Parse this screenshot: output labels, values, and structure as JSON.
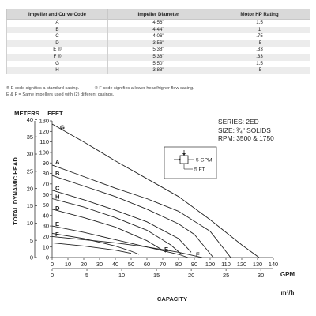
{
  "table": {
    "headers": [
      "Impeller and Curve Code",
      "Impeller Diameter",
      "Motor HP Rating"
    ],
    "rows": [
      [
        "A",
        "4.56\"",
        "1.5"
      ],
      [
        "B",
        "4.44\"",
        "1"
      ],
      [
        "C",
        "4.06\"",
        ".75"
      ],
      [
        "D",
        "3.56\"",
        ".5"
      ],
      [
        "E ®",
        "5.38\"",
        ".33"
      ],
      [
        "F ®",
        "5.38\"",
        ".33"
      ],
      [
        "G",
        "5.50\"",
        "1.5"
      ],
      [
        "H",
        "3.88\"",
        ".5"
      ]
    ]
  },
  "notes": {
    "e_code": "® E code signifies a standard casing.",
    "f_code": "® F code signifies a lower head/higher flow casing.",
    "ef_same": "E & F = Same impellers used with (2) different casings."
  },
  "series_info": {
    "line1": "SERIES: 2ED",
    "line2": "SIZE: ³⁄₄\" SOLIDS",
    "line3": "RPM: 3500 & 1750"
  },
  "scale_key": {
    "gpm": "5 GPM",
    "ft": "5 FT"
  },
  "chart_data": {
    "type": "line",
    "title": "",
    "ylabel": "TOTAL DYNAMIC HEAD",
    "y_units_left": "METERS",
    "y_units_right": "FEET",
    "xlabel": "CAPACITY",
    "x_units": "GPM",
    "x2_units": "m³/h",
    "xlim": [
      0,
      140
    ],
    "ylim": [
      0,
      130
    ],
    "x_ticks_gpm": [
      0,
      10,
      20,
      30,
      40,
      50,
      60,
      70,
      80,
      90,
      100,
      110,
      120,
      130,
      140
    ],
    "y_ticks_feet": [
      0,
      10,
      20,
      30,
      40,
      50,
      60,
      70,
      80,
      90,
      100,
      110,
      120,
      130
    ],
    "y_ticks_meters": [
      0,
      5,
      10,
      15,
      20,
      25,
      30,
      35,
      40
    ],
    "x_ticks_m3h": [
      0,
      5,
      10,
      15,
      20,
      25,
      30
    ],
    "grid": false,
    "series": [
      {
        "name": "G",
        "points": [
          [
            0,
            127
          ],
          [
            20,
            110
          ],
          [
            40,
            92
          ],
          [
            60,
            75
          ],
          [
            80,
            58
          ],
          [
            100,
            36
          ],
          [
            120,
            12
          ],
          [
            131,
            0
          ]
        ]
      },
      {
        "name": "A",
        "points": [
          [
            0,
            88
          ],
          [
            20,
            77
          ],
          [
            40,
            66
          ],
          [
            60,
            56
          ],
          [
            80,
            44
          ],
          [
            100,
            25
          ],
          [
            113,
            0
          ]
        ]
      },
      {
        "name": "B",
        "points": [
          [
            0,
            78
          ],
          [
            20,
            68
          ],
          [
            40,
            58
          ],
          [
            60,
            46
          ],
          [
            80,
            32
          ],
          [
            90,
            22
          ],
          [
            102,
            0
          ]
        ]
      },
      {
        "name": "C",
        "points": [
          [
            0,
            64
          ],
          [
            20,
            55
          ],
          [
            40,
            45
          ],
          [
            60,
            34
          ],
          [
            80,
            18
          ],
          [
            88,
            5
          ]
        ]
      },
      {
        "name": "H",
        "points": [
          [
            0,
            56
          ],
          [
            20,
            48
          ],
          [
            40,
            38
          ],
          [
            60,
            26
          ],
          [
            75,
            12
          ],
          [
            82,
            3
          ]
        ]
      },
      {
        "name": "D",
        "points": [
          [
            0,
            46
          ],
          [
            20,
            38
          ],
          [
            40,
            29
          ],
          [
            60,
            16
          ],
          [
            72,
            5
          ]
        ]
      },
      {
        "name": "E",
        "points": [
          [
            0,
            30
          ],
          [
            20,
            24
          ],
          [
            40,
            17
          ],
          [
            60,
            10
          ],
          [
            80,
            3
          ],
          [
            86,
            0
          ]
        ]
      },
      {
        "name": "F",
        "points": [
          [
            0,
            20
          ],
          [
            20,
            17
          ],
          [
            40,
            14
          ],
          [
            60,
            10
          ],
          [
            80,
            5
          ],
          [
            95,
            0
          ]
        ]
      }
    ],
    "unlabeled_curves": [
      {
        "points": [
          [
            0,
            23
          ],
          [
            20,
            18
          ],
          [
            40,
            11
          ],
          [
            50,
            6
          ],
          [
            55,
            3
          ]
        ]
      },
      {
        "points": [
          [
            0,
            14
          ],
          [
            20,
            11
          ],
          [
            40,
            7
          ],
          [
            50,
            4
          ]
        ]
      }
    ],
    "curve_labels": [
      {
        "text": "G",
        "at": [
          4,
          124
        ]
      },
      {
        "text": "A",
        "at": [
          1,
          91
        ]
      },
      {
        "text": "B",
        "at": [
          1,
          80
        ]
      },
      {
        "text": "C",
        "at": [
          1,
          66
        ]
      },
      {
        "text": "H",
        "at": [
          1,
          58
        ]
      },
      {
        "text": "D",
        "at": [
          1,
          47
        ]
      },
      {
        "text": "E",
        "at": [
          1,
          32
        ]
      },
      {
        "text": "F",
        "at": [
          1,
          22
        ]
      },
      {
        "text": "E",
        "at": [
          70,
          8
        ]
      },
      {
        "text": "F",
        "at": [
          90,
          3
        ]
      }
    ]
  }
}
